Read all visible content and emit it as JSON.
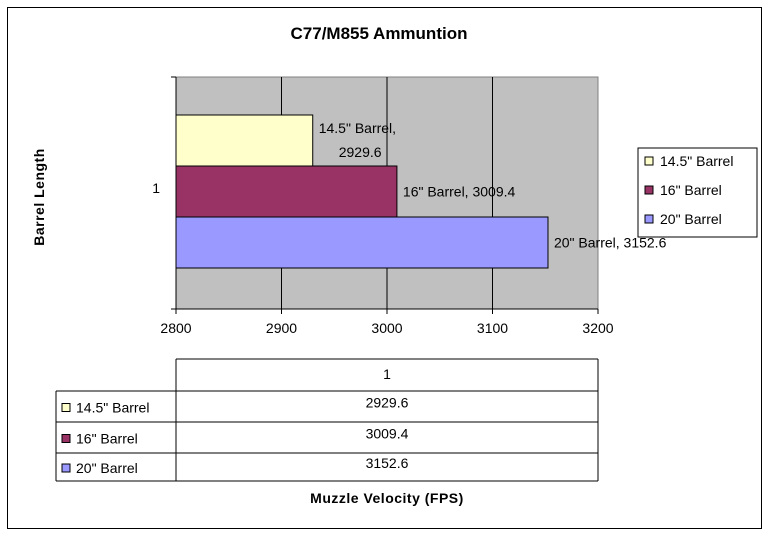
{
  "chart_data": {
    "type": "bar",
    "orientation": "horizontal",
    "title": "C77/M855 Ammuntion",
    "xlabel": "Muzzle Velocity (FPS)",
    "ylabel": "Barrel Length",
    "categories": [
      "1"
    ],
    "xlim": [
      2800,
      3200
    ],
    "xticks": [
      "2800",
      "2900",
      "3000",
      "3100",
      "3200"
    ],
    "grid": true,
    "legend_position": "right",
    "series": [
      {
        "name": "14.5\" Barrel",
        "values": [
          2929.6
        ],
        "data_label": "14.5\" Barrel, 2929.6",
        "data_label_lines": [
          "14.5\" Barrel,",
          "2929.6"
        ],
        "color": "#FFFFCC"
      },
      {
        "name": "16\" Barrel",
        "values": [
          3009.4
        ],
        "data_label": "16\" Barrel, 3009.4",
        "color": "#993366"
      },
      {
        "name": "20\" Barrel",
        "values": [
          3152.6
        ],
        "data_label": "20\" Barrel, 3152.6",
        "color": "#9999FF"
      }
    ],
    "data_table": {
      "header": "1",
      "rows": [
        {
          "name": "14.5\" Barrel",
          "value": "2929.6"
        },
        {
          "name": "16\" Barrel",
          "value": "3009.4"
        },
        {
          "name": "20\" Barrel",
          "value": "3152.6"
        }
      ]
    },
    "plot_background": "#C0C0C0"
  }
}
